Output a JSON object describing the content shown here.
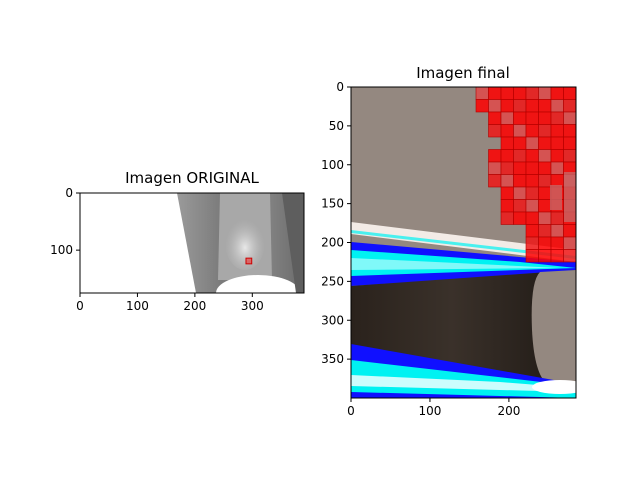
{
  "chart_data": [
    {
      "type": "image",
      "title": "Imagen ORIGINAL",
      "xlim": [
        0,
        390
      ],
      "ylim": [
        175,
        0
      ],
      "xticks": [
        0,
        100,
        200,
        300
      ],
      "yticks": [
        0,
        100
      ],
      "marked_region": {
        "x": [
          289,
          299
        ],
        "y": [
          114,
          124
        ],
        "color": "#ff0000"
      }
    },
    {
      "type": "image",
      "title": "Imagen final",
      "xlim": [
        0,
        285
      ],
      "ylim": [
        400,
        0
      ],
      "xticks": [
        0,
        100,
        200
      ],
      "yticks": [
        0,
        50,
        100,
        150,
        200,
        250,
        300,
        350
      ],
      "overlay_colors": {
        "red": "#ff0000",
        "blue": "#1010ff",
        "cyan": "#00f2f2",
        "background": "#948880"
      }
    }
  ]
}
